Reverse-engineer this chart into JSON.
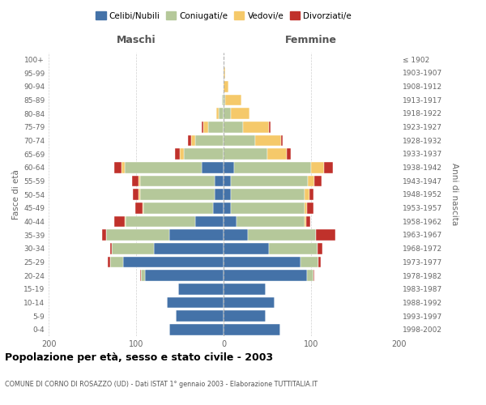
{
  "age_groups": [
    "0-4",
    "5-9",
    "10-14",
    "15-19",
    "20-24",
    "25-29",
    "30-34",
    "35-39",
    "40-44",
    "45-49",
    "50-54",
    "55-59",
    "60-64",
    "65-69",
    "70-74",
    "75-79",
    "80-84",
    "85-89",
    "90-94",
    "95-99",
    "100+"
  ],
  "birth_years": [
    "1998-2002",
    "1993-1997",
    "1988-1992",
    "1983-1987",
    "1978-1982",
    "1973-1977",
    "1968-1972",
    "1963-1967",
    "1958-1962",
    "1953-1957",
    "1948-1952",
    "1943-1947",
    "1938-1942",
    "1933-1937",
    "1928-1932",
    "1923-1927",
    "1918-1922",
    "1913-1917",
    "1908-1912",
    "1903-1907",
    "≤ 1902"
  ],
  "maschi": {
    "celibi": [
      62,
      55,
      65,
      52,
      90,
      115,
      80,
      62,
      32,
      12,
      10,
      10,
      25,
      0,
      0,
      0,
      0,
      0,
      0,
      0,
      0
    ],
    "coniugati": [
      0,
      0,
      0,
      0,
      4,
      15,
      48,
      72,
      80,
      80,
      85,
      85,
      88,
      45,
      32,
      18,
      6,
      2,
      0,
      0,
      0
    ],
    "vedovi": [
      0,
      0,
      0,
      0,
      0,
      0,
      0,
      0,
      1,
      1,
      2,
      2,
      4,
      5,
      5,
      5,
      2,
      0,
      0,
      0,
      0
    ],
    "divorziati": [
      0,
      0,
      0,
      0,
      1,
      2,
      2,
      5,
      12,
      8,
      7,
      8,
      8,
      6,
      4,
      2,
      0,
      0,
      0,
      0,
      0
    ]
  },
  "femmine": {
    "nubili": [
      65,
      48,
      58,
      48,
      95,
      88,
      52,
      28,
      15,
      8,
      8,
      8,
      12,
      0,
      0,
      0,
      0,
      0,
      0,
      0,
      0
    ],
    "coniugate": [
      0,
      0,
      0,
      0,
      8,
      20,
      55,
      78,
      78,
      85,
      85,
      88,
      88,
      50,
      36,
      22,
      8,
      2,
      0,
      0,
      0
    ],
    "vedove": [
      0,
      0,
      0,
      0,
      0,
      0,
      0,
      0,
      1,
      2,
      5,
      8,
      15,
      22,
      30,
      30,
      22,
      18,
      6,
      2,
      0
    ],
    "divorziate": [
      0,
      0,
      0,
      0,
      1,
      3,
      6,
      22,
      5,
      8,
      5,
      8,
      10,
      5,
      2,
      2,
      0,
      0,
      0,
      0,
      0
    ]
  },
  "colors": {
    "celibi": "#4472a8",
    "coniugati": "#b5c89a",
    "vedovi": "#f5c96a",
    "divorziati": "#c0312b"
  },
  "xlim": 200,
  "title": "Popolazione per età, sesso e stato civile - 2003",
  "subtitle": "COMUNE DI CORNO DI ROSAZZO (UD) - Dati ISTAT 1° gennaio 2003 - Elaborazione TUTTITALIA.IT",
  "xlabel_left": "Maschi",
  "xlabel_right": "Femmine",
  "ylabel_left": "Fasce di età",
  "ylabel_right": "Anni di nascita",
  "legend_labels": [
    "Celibi/Nubili",
    "Coniugati/e",
    "Vedovi/e",
    "Divorziati/e"
  ]
}
